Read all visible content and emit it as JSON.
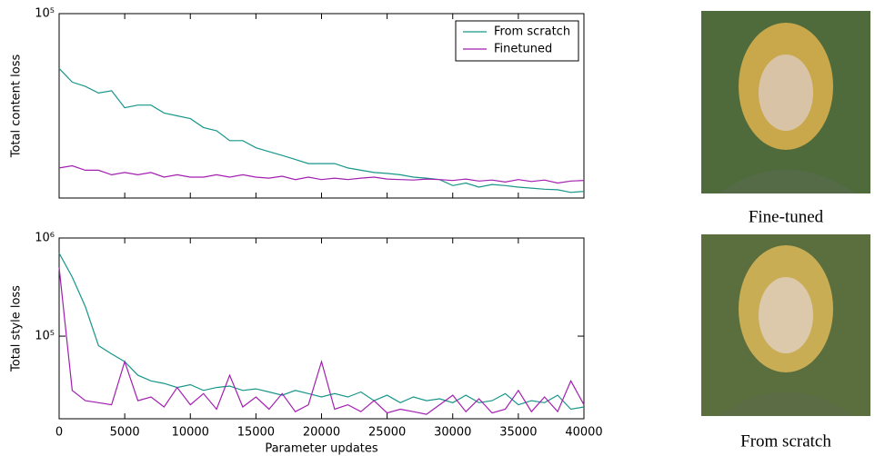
{
  "chart_data": [
    {
      "type": "line",
      "log_y": true,
      "ylabel": "Total content loss",
      "x": [
        0,
        1000,
        2000,
        3000,
        4000,
        5000,
        6000,
        7000,
        8000,
        9000,
        10000,
        11000,
        12000,
        13000,
        14000,
        15000,
        16000,
        17000,
        18000,
        19000,
        20000,
        21000,
        22000,
        23000,
        24000,
        25000,
        26000,
        27000,
        28000,
        29000,
        30000,
        31000,
        32000,
        33000,
        34000,
        35000,
        36000,
        37000,
        38000,
        39000,
        40000
      ],
      "series": [
        {
          "name": "From scratch",
          "color": "#17968a",
          "values": [
            62000,
            55000,
            53000,
            50000,
            51000,
            44000,
            45000,
            45000,
            42000,
            41000,
            40000,
            37000,
            36000,
            33000,
            33000,
            31000,
            30000,
            29000,
            28000,
            27000,
            27000,
            27000,
            26000,
            25500,
            25000,
            24800,
            24500,
            24000,
            23800,
            23500,
            22300,
            22800,
            22000,
            22500,
            22300,
            22000,
            21800,
            21600,
            21500,
            21000,
            21200
          ]
        },
        {
          "name": "Finetuned",
          "color": "#a21fb0",
          "values": [
            26000,
            26500,
            25500,
            25500,
            24500,
            25000,
            24500,
            25000,
            24000,
            24500,
            24000,
            24000,
            24500,
            24000,
            24500,
            24000,
            23800,
            24200,
            23500,
            24000,
            23500,
            23800,
            23500,
            23800,
            24000,
            23600,
            23500,
            23400,
            23600,
            23500,
            23300,
            23600,
            23200,
            23400,
            23000,
            23500,
            23100,
            23400,
            22800,
            23200,
            23300
          ]
        }
      ],
      "xlim": [
        0,
        40000
      ],
      "xticks": [
        0,
        5000,
        10000,
        15000,
        20000,
        25000,
        30000,
        35000,
        40000
      ],
      "ylim": [
        20000,
        100000
      ],
      "yticks": [
        {
          "value": 100000,
          "label": "10⁵"
        }
      ],
      "legend": "upper right"
    },
    {
      "type": "line",
      "log_y": true,
      "ylabel": "Total style loss",
      "xlabel": "Parameter updates",
      "x": [
        0,
        1000,
        2000,
        3000,
        4000,
        5000,
        6000,
        7000,
        8000,
        9000,
        10000,
        11000,
        12000,
        13000,
        14000,
        15000,
        16000,
        17000,
        18000,
        19000,
        20000,
        21000,
        22000,
        23000,
        24000,
        25000,
        26000,
        27000,
        28000,
        29000,
        30000,
        31000,
        32000,
        33000,
        34000,
        35000,
        36000,
        37000,
        38000,
        39000,
        40000
      ],
      "series": [
        {
          "color": "#17968a",
          "values": [
            700000,
            400000,
            200000,
            80000,
            66000,
            55000,
            40000,
            35000,
            33000,
            30000,
            32000,
            28000,
            30000,
            31000,
            28000,
            29000,
            27000,
            25000,
            28000,
            26000,
            24000,
            26000,
            24000,
            27000,
            22000,
            25000,
            21000,
            24000,
            22000,
            23000,
            21000,
            25000,
            21000,
            22000,
            26000,
            20000,
            22000,
            21000,
            25000,
            18000,
            19000
          ]
        },
        {
          "color": "#a21fb0",
          "values": [
            500000,
            28000,
            22000,
            21000,
            20000,
            55000,
            22000,
            24000,
            19000,
            30000,
            20000,
            26000,
            18000,
            40000,
            19000,
            24000,
            18000,
            26000,
            17000,
            20000,
            55000,
            18000,
            20000,
            17000,
            22000,
            16500,
            18000,
            17000,
            16000,
            20000,
            25000,
            17000,
            23000,
            16500,
            18000,
            28000,
            17000,
            24000,
            17000,
            35000,
            20000
          ]
        }
      ],
      "xlim": [
        0,
        40000
      ],
      "xticks": [
        0,
        5000,
        10000,
        15000,
        20000,
        25000,
        30000,
        35000,
        40000
      ],
      "ylim": [
        14400,
        1000000
      ],
      "yticks": [
        {
          "value": 100000,
          "label": "10⁵"
        },
        {
          "value": 1000000,
          "label": "10⁶"
        }
      ]
    }
  ],
  "figure": {
    "captions": [
      "Fine-tuned",
      "From scratch"
    ]
  }
}
